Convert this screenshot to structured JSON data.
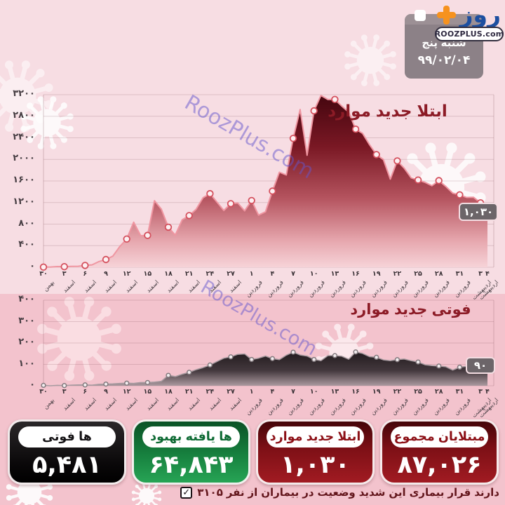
{
  "colors": {
    "bg_top": "#f7dde3",
    "bg_bottom": "#f3c3cd",
    "title_red": "#8c1b26",
    "cases_fill_dark": "#45060f",
    "cases_line": "#ef96a1",
    "deaths_fill_dark": "#221b1e",
    "badge_gray": "#6c6569",
    "box_black": "#0a0809",
    "box_green": "#17813f",
    "box_red": "#7e1016",
    "logo_blue": "#1d4fa0",
    "logo_orange": "#f6921e",
    "watermark_purple": "#6455cd"
  },
  "watermark": {
    "text": "RoozPlus.com"
  },
  "header": {
    "logo": {
      "text": "روز",
      "plus_icon": "plus-icon"
    },
    "site_badge": "ROOZPLUS.com",
    "date_card": {
      "weekday": "پنج شنبه",
      "date": "۹۹/۰۲/۰۴"
    }
  },
  "chart_data": [
    {
      "type": "area",
      "id": "cases",
      "title": "موارد جدید ابتلا",
      "last_label": "۱,۰۳۰",
      "last_value": 1030,
      "ylim": [
        0,
        3200
      ],
      "grid": true,
      "y_ticks": [
        {
          "v": 0,
          "label": "۰"
        },
        {
          "v": 400,
          "label": "۴۰۰"
        },
        {
          "v": 800,
          "label": "۸۰۰"
        },
        {
          "v": 1200,
          "label": "۱۲۰۰"
        },
        {
          "v": 1600,
          "label": "۱۶۰۰"
        },
        {
          "v": 2000,
          "label": "۲۰۰۰"
        },
        {
          "v": 2400,
          "label": "۲۴۰۰"
        },
        {
          "v": 2800,
          "label": "۲۸۰۰"
        },
        {
          "v": 3200,
          "label": "۳۲۰۰"
        }
      ],
      "x_ticks": [
        {
          "d": "۳۰",
          "m": "بهمن"
        },
        {
          "d": "۳",
          "m": "اسفند"
        },
        {
          "d": "۶",
          "m": "اسفند"
        },
        {
          "d": "۹",
          "m": "اسفند"
        },
        {
          "d": "۱۲",
          "m": "اسفند"
        },
        {
          "d": "۱۵",
          "m": "اسفند"
        },
        {
          "d": "۱۸",
          "m": "اسفند"
        },
        {
          "d": "۲۱",
          "m": "اسفند"
        },
        {
          "d": "۲۴",
          "m": "اسفند"
        },
        {
          "d": "۲۷",
          "m": "اسفند"
        },
        {
          "d": "۱",
          "m": "فروردین"
        },
        {
          "d": "۴",
          "m": "فروردین"
        },
        {
          "d": "۷",
          "m": "فروردین"
        },
        {
          "d": "۱۰",
          "m": "فروردین"
        },
        {
          "d": "۱۳",
          "m": "فروردین"
        },
        {
          "d": "۱۶",
          "m": "فروردین"
        },
        {
          "d": "۱۹",
          "m": "فروردین"
        },
        {
          "d": "۲۲",
          "m": "فروردین"
        },
        {
          "d": "۲۵",
          "m": "فروردین"
        },
        {
          "d": "۲۸",
          "m": "فروردین"
        },
        {
          "d": "۳۱",
          "m": "فروردین"
        },
        {
          "d": "۳",
          "m": "اردیبهشت"
        },
        {
          "d": "۴",
          "m": "اردیبهشت"
        }
      ],
      "tick_day_indices": [
        0,
        3,
        6,
        9,
        12,
        15,
        18,
        21,
        24,
        27,
        30,
        33,
        36,
        39,
        42,
        45,
        48,
        51,
        54,
        57,
        60,
        63,
        64
      ],
      "values": [
        2,
        3,
        13,
        10,
        15,
        18,
        34,
        44,
        106,
        143,
        205,
        385,
        523,
        835,
        586,
        591,
        1234,
        1076,
        743,
        595,
        881,
        958,
        1075,
        1289,
        1365,
        1209,
        1053,
        1178,
        1192,
        1046,
        1237,
        966,
        1028,
        1411,
        1762,
        1711,
        2389,
        2926,
        2076,
        2901,
        3186,
        3110,
        3111,
        2988,
        2875,
        2560,
        2483,
        2274,
        2089,
        1997,
        1634,
        1972,
        1837,
        1657,
        1617,
        1574,
        1512,
        1606,
        1499,
        1374,
        1343,
        1294,
        1297,
        1194,
        1030
      ]
    },
    {
      "type": "area",
      "id": "deaths",
      "title": "موارد جدید فوتی",
      "last_label": "۹۰",
      "last_value": 90,
      "ylim": [
        0,
        400
      ],
      "grid": true,
      "y_ticks": [
        {
          "v": 0,
          "label": "۰"
        },
        {
          "v": 100,
          "label": "۱۰۰"
        },
        {
          "v": 200,
          "label": "۲۰۰"
        },
        {
          "v": 300,
          "label": "۳۰۰"
        },
        {
          "v": 400,
          "label": "۴۰۰"
        }
      ],
      "tick_day_indices": [
        0,
        3,
        6,
        9,
        12,
        15,
        18,
        21,
        24,
        27,
        30,
        33,
        36,
        39,
        42,
        45,
        48,
        51,
        54,
        57,
        60,
        63,
        64
      ],
      "values": [
        2,
        0,
        2,
        1,
        3,
        4,
        4,
        3,
        7,
        8,
        9,
        11,
        12,
        11,
        15,
        15,
        17,
        21,
        49,
        43,
        54,
        63,
        75,
        85,
        97,
        113,
        129,
        135,
        147,
        149,
        123,
        129,
        139,
        127,
        122,
        143,
        157,
        144,
        139,
        123,
        117,
        141,
        141,
        138,
        124,
        158,
        151,
        136,
        133,
        121,
        117,
        122,
        125,
        117,
        111,
        98,
        94,
        92,
        89,
        73,
        87,
        91,
        88,
        94,
        90
      ]
    }
  ],
  "stats": [
    {
      "key": "deaths",
      "style": "black",
      "label": "فوتی ها",
      "value": "۵,۴۸۱"
    },
    {
      "key": "recovered",
      "style": "green",
      "label": "بهبود یافته ها",
      "value": "۶۴,۸۴۳"
    },
    {
      "key": "new-cases",
      "style": "red",
      "label": "موارد جدید ابتلا",
      "value": "۱,۰۳۰"
    },
    {
      "key": "total-cases",
      "style": "red",
      "label": "مجموع مبتلایان",
      "value": "۸۷,۰۲۶"
    }
  ],
  "footer": {
    "check_icon": "✓",
    "note": "۳۱۰۵ نفر از بیماران در وضعیت شدید این بیماری قرار دارند"
  }
}
